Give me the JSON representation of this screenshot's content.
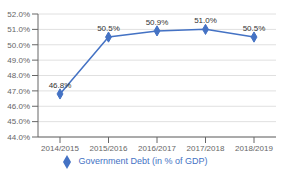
{
  "chart_data": {
    "type": "line",
    "categories": [
      "2014/2015",
      "2015/2016",
      "2016/2017",
      "2017/2018",
      "2018/2019"
    ],
    "series": [
      {
        "name": "Government Debt (in % of GDP)",
        "color": "#4472c4",
        "marker": "diamond",
        "values": [
          46.8,
          50.5,
          50.9,
          51.0,
          50.5
        ],
        "value_labels": [
          "46.8%",
          "50.5%",
          "50.9%",
          "51.0%",
          "50.5%"
        ]
      }
    ],
    "ylim": [
      44.0,
      52.0
    ],
    "yticks": [
      {
        "value": 44.0,
        "label": "44.0%"
      },
      {
        "value": 45.0,
        "label": "45.0%"
      },
      {
        "value": 46.0,
        "label": "46.0%"
      },
      {
        "value": 47.0,
        "label": "47.0%"
      },
      {
        "value": 48.0,
        "label": "48.0%"
      },
      {
        "value": 49.0,
        "label": "49.0%"
      },
      {
        "value": 50.0,
        "label": "50.0%"
      },
      {
        "value": 51.0,
        "label": "51.0%"
      },
      {
        "value": 52.0,
        "label": "52.0%"
      }
    ],
    "grid": true,
    "legend": "bottom",
    "data_labels": true
  }
}
